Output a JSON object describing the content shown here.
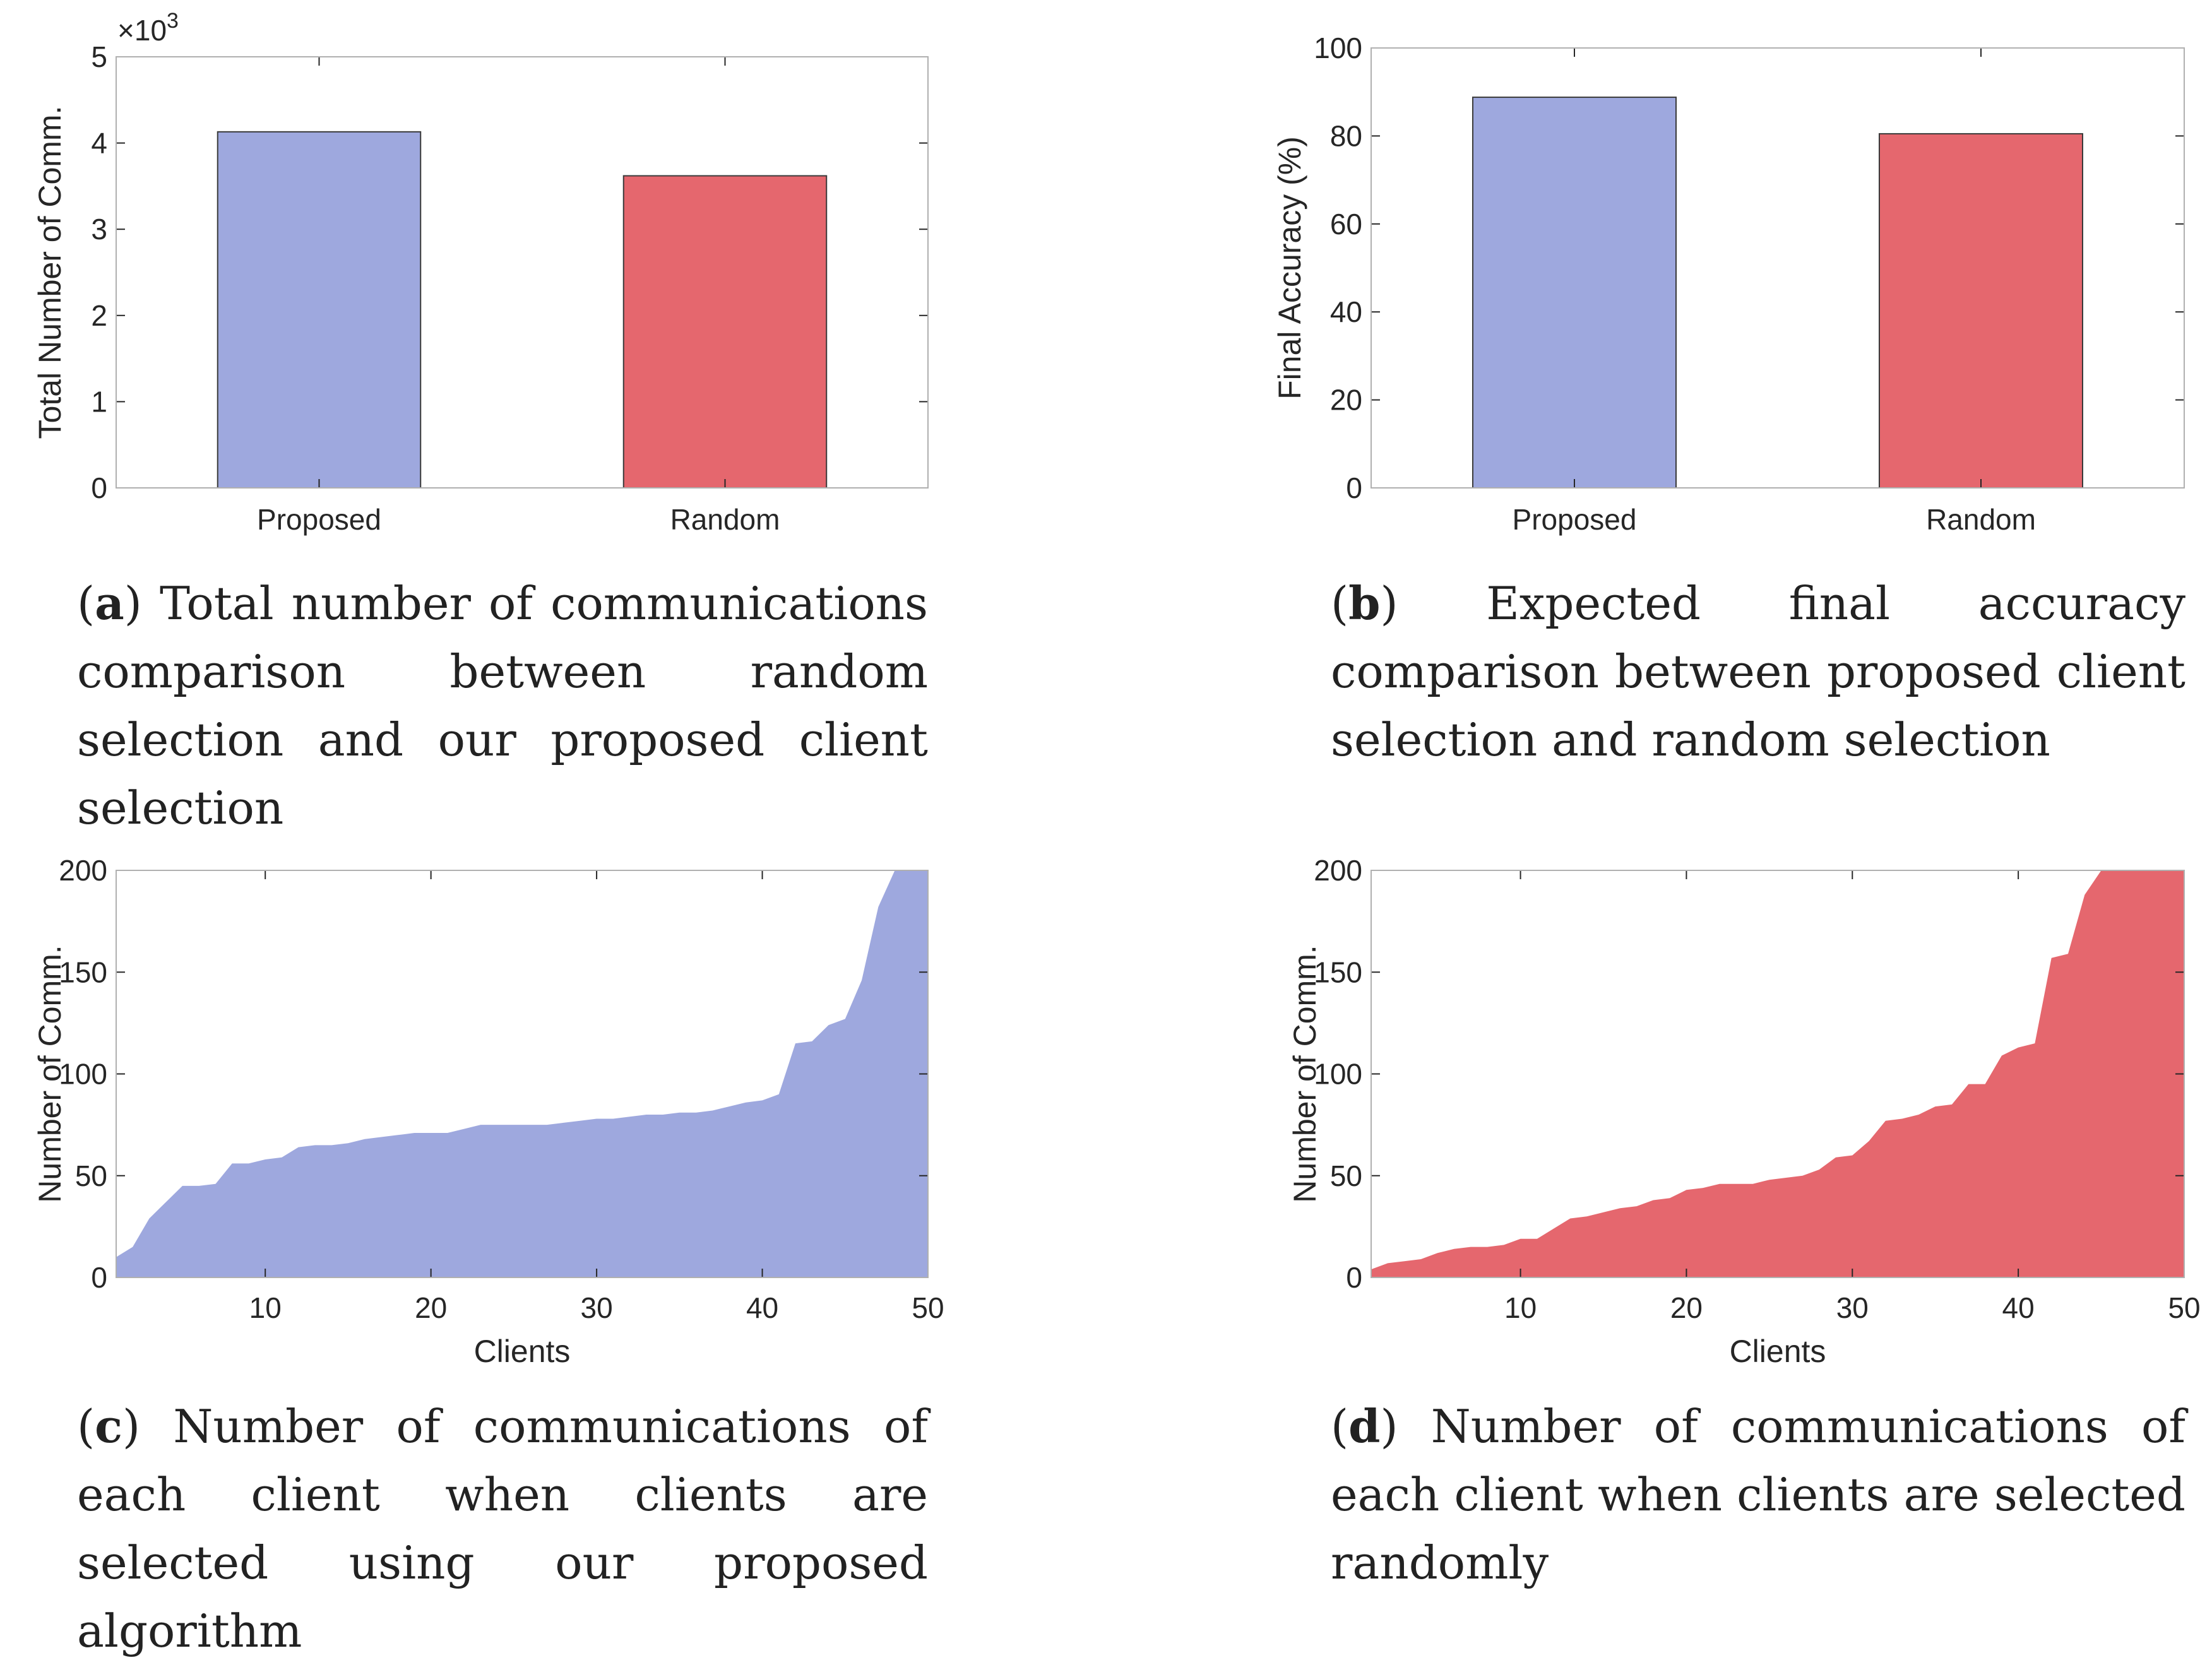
{
  "colors": {
    "proposed": "#9ea8de",
    "random": "#e5676e",
    "axis": "#262626",
    "frame": "#b0b0b0"
  },
  "captions": [
    {
      "letter": "a",
      "text": "Total number of communications comparison between random selection and our proposed client selection"
    },
    {
      "letter": "b",
      "text": "Expected final accuracy comparison between proposed client selection and random selection"
    },
    {
      "letter": "c",
      "text": "Number of communications of each client when clients are selected using our proposed algorithm"
    },
    {
      "letter": "d",
      "text": "Number of communications of each client when clients are selected randomly"
    }
  ],
  "chart_data": [
    {
      "id": "a",
      "type": "bar",
      "categories": [
        "Proposed",
        "Random"
      ],
      "values": [
        4130,
        3620
      ],
      "colors": [
        "#9ea8de",
        "#e5676e"
      ],
      "ylabel": "Total Number of Comm.",
      "xlabel": "",
      "ylim": [
        0,
        5000
      ],
      "ytick_values": [
        0,
        1000,
        2000,
        3000,
        4000,
        5000
      ],
      "ytick_labels": [
        "0",
        "1",
        "2",
        "3",
        "4",
        "5"
      ],
      "exponent_label": "×10",
      "exponent_power": "3",
      "grid": false
    },
    {
      "id": "b",
      "type": "bar",
      "categories": [
        "Proposed",
        "Random"
      ],
      "values": [
        88.8,
        80.5
      ],
      "colors": [
        "#9ea8de",
        "#e5676e"
      ],
      "ylabel": "Final Accuracy (%)",
      "xlabel": "",
      "ylim": [
        0,
        100
      ],
      "ytick_values": [
        0,
        20,
        40,
        60,
        80,
        100
      ],
      "ytick_labels": [
        "0",
        "20",
        "40",
        "60",
        "80",
        "100"
      ],
      "grid": false
    },
    {
      "id": "c",
      "type": "area",
      "x": [
        1,
        2,
        3,
        4,
        5,
        6,
        7,
        8,
        9,
        10,
        11,
        12,
        13,
        14,
        15,
        16,
        17,
        18,
        19,
        20,
        21,
        22,
        23,
        24,
        25,
        26,
        27,
        28,
        29,
        30,
        31,
        32,
        33,
        34,
        35,
        36,
        37,
        38,
        39,
        40,
        41,
        42,
        43,
        44,
        45,
        46,
        47,
        48,
        49,
        50
      ],
      "series": [
        {
          "values": [
            10,
            15,
            29,
            37,
            45,
            45,
            46,
            56,
            56,
            58,
            59,
            64,
            65,
            65,
            66,
            68,
            69,
            70,
            71,
            71,
            71,
            73,
            75,
            75,
            75,
            75,
            75,
            76,
            77,
            78,
            78,
            79,
            80,
            80,
            81,
            81,
            82,
            84,
            86,
            87,
            90,
            115,
            116,
            124,
            127,
            146,
            182,
            200,
            200,
            200
          ],
          "color": "#9ea8de"
        }
      ],
      "xlabel": "Clients",
      "ylabel": "Number of Comm.",
      "xlim": [
        1,
        50
      ],
      "ylim": [
        0,
        200
      ],
      "xtick_values": [
        10,
        20,
        30,
        40,
        50
      ],
      "ytick_values": [
        0,
        50,
        100,
        150,
        200
      ],
      "grid": false
    },
    {
      "id": "d",
      "type": "area",
      "x": [
        1,
        2,
        3,
        4,
        5,
        6,
        7,
        8,
        9,
        10,
        11,
        12,
        13,
        14,
        15,
        16,
        17,
        18,
        19,
        20,
        21,
        22,
        23,
        24,
        25,
        26,
        27,
        28,
        29,
        30,
        31,
        32,
        33,
        34,
        35,
        36,
        37,
        38,
        39,
        40,
        41,
        42,
        43,
        44,
        45,
        46,
        47,
        48,
        49,
        50
      ],
      "series": [
        {
          "values": [
            4,
            7,
            8,
            9,
            12,
            14,
            15,
            15,
            16,
            19,
            19,
            24,
            29,
            30,
            32,
            34,
            35,
            38,
            39,
            43,
            44,
            46,
            46,
            46,
            48,
            49,
            50,
            53,
            59,
            60,
            67,
            77,
            78,
            80,
            84,
            85,
            95,
            95,
            109,
            113,
            115,
            157,
            159,
            188,
            200,
            200,
            200,
            200,
            200,
            200
          ],
          "color": "#e5676e"
        }
      ],
      "xlabel": "Clients",
      "ylabel": "Number of Comm.",
      "xlim": [
        1,
        50
      ],
      "ylim": [
        0,
        200
      ],
      "xtick_values": [
        10,
        20,
        30,
        40,
        50
      ],
      "ytick_values": [
        0,
        50,
        100,
        150,
        200
      ],
      "grid": false
    }
  ]
}
